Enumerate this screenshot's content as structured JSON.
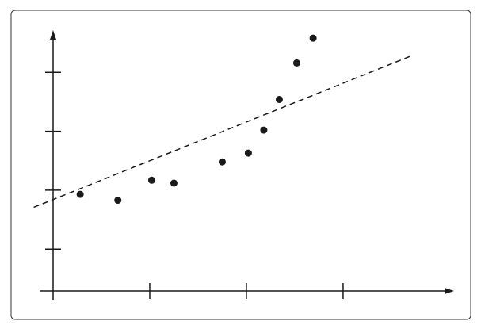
{
  "chart_data": {
    "type": "scatter",
    "x": [
      0.28,
      0.67,
      1.02,
      1.25,
      1.75,
      2.02,
      2.18,
      2.34,
      2.52,
      2.69
    ],
    "y": [
      1.93,
      1.83,
      2.17,
      2.12,
      2.48,
      2.63,
      3.02,
      3.54,
      4.16,
      4.58
    ],
    "color": "#1a1a1a",
    "trendline": {
      "x": [
        -0.2,
        3.69
      ],
      "y": [
        1.71,
        4.27
      ],
      "color": "#1a1a1a"
    },
    "xlim": [
      0,
      4.14
    ],
    "ylim": [
      0.29,
      4.69
    ],
    "xticks": [
      1,
      2,
      3
    ],
    "yticks": [
      1,
      2,
      3,
      4
    ]
  }
}
